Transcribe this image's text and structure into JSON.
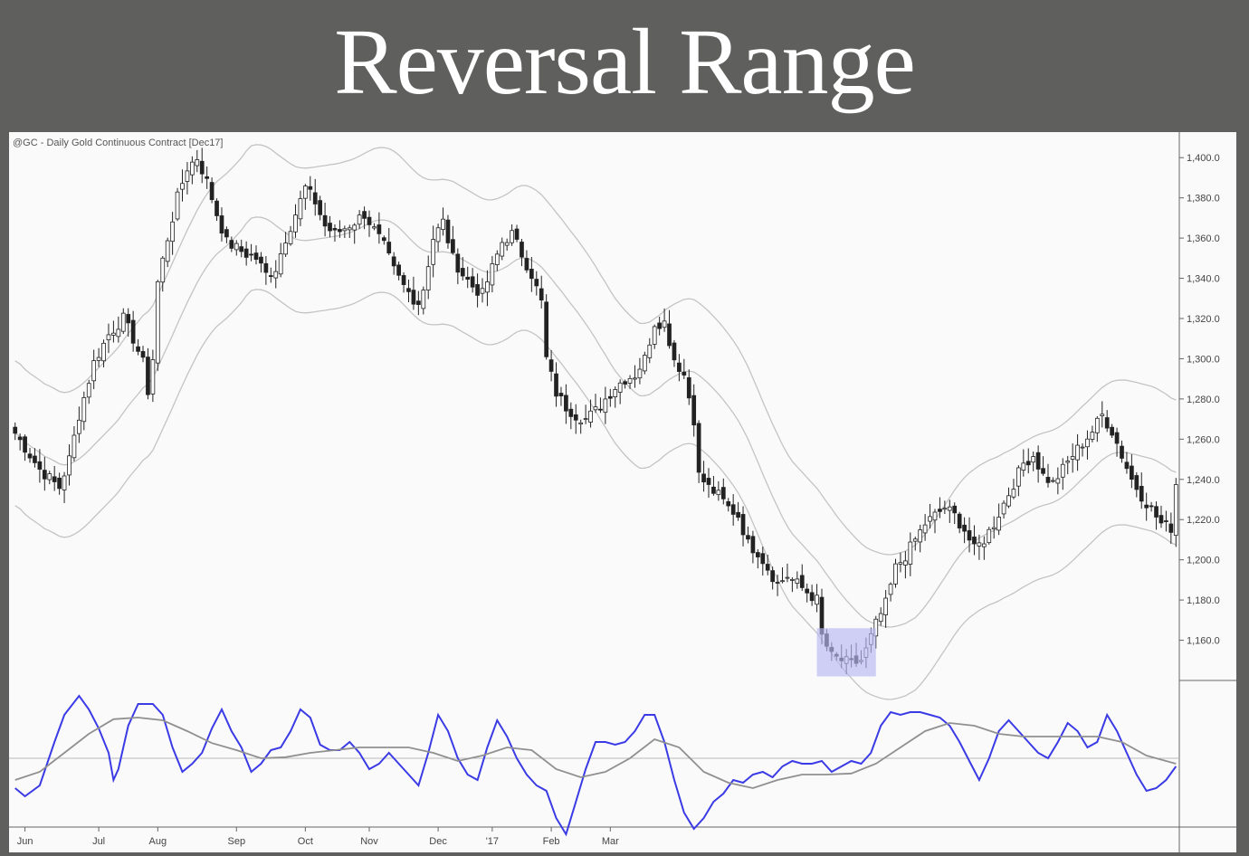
{
  "page": {
    "title": "Reversal Range"
  },
  "chart_data": {
    "type": "candlestick",
    "title": "@GC - Daily  Gold Continuous Contract [Dec17]",
    "price_axis": {
      "range": [
        1140,
        1410
      ],
      "ticks": [
        1400,
        1380,
        1360,
        1340,
        1320,
        1300,
        1280,
        1260,
        1240,
        1220,
        1200,
        1180,
        1160
      ],
      "tick_labels": [
        "1,400.0",
        "1,380.0",
        "1,360.0",
        "1,340.0",
        "1,320.0",
        "1,300.0",
        "1,280.0",
        "1,260.0",
        "1,240.0",
        "1,220.0",
        "1,200.0",
        "1,180.0",
        "1,160.0"
      ]
    },
    "x_axis": {
      "tick_labels": [
        "Jun",
        "Jul",
        "Aug",
        "Sep",
        "Oct",
        "Nov",
        "Dec",
        "'17",
        "Feb",
        "Mar"
      ]
    },
    "price_series": [
      [
        0,
        1263
      ],
      [
        5,
        1245
      ],
      [
        9,
        1236
      ],
      [
        11,
        1250
      ],
      [
        13,
        1272
      ],
      [
        16,
        1298
      ],
      [
        19,
        1312
      ],
      [
        22,
        1320
      ],
      [
        24,
        1310
      ],
      [
        26,
        1298
      ],
      [
        27,
        1284
      ],
      [
        28,
        1300
      ],
      [
        29,
        1338
      ],
      [
        31,
        1360
      ],
      [
        33,
        1380
      ],
      [
        35,
        1395
      ],
      [
        37,
        1400
      ],
      [
        39,
        1388
      ],
      [
        41,
        1372
      ],
      [
        43,
        1358
      ],
      [
        45,
        1355
      ],
      [
        47,
        1352
      ],
      [
        49,
        1350
      ],
      [
        51,
        1342
      ],
      [
        53,
        1345
      ],
      [
        55,
        1360
      ],
      [
        57,
        1372
      ],
      [
        59,
        1385
      ],
      [
        61,
        1378
      ],
      [
        63,
        1366
      ],
      [
        65,
        1362
      ],
      [
        67,
        1365
      ],
      [
        69,
        1368
      ],
      [
        71,
        1372
      ],
      [
        73,
        1364
      ],
      [
        75,
        1356
      ],
      [
        77,
        1344
      ],
      [
        79,
        1336
      ],
      [
        81,
        1330
      ],
      [
        82,
        1328
      ],
      [
        83,
        1335
      ],
      [
        85,
        1360
      ],
      [
        87,
        1368
      ],
      [
        89,
        1350
      ],
      [
        91,
        1342
      ],
      [
        93,
        1336
      ],
      [
        95,
        1332
      ],
      [
        97,
        1345
      ],
      [
        99,
        1358
      ],
      [
        101,
        1362
      ],
      [
        103,
        1352
      ],
      [
        105,
        1342
      ],
      [
        107,
        1328
      ],
      [
        108,
        1300
      ],
      [
        110,
        1283
      ],
      [
        112,
        1276
      ],
      [
        114,
        1272
      ],
      [
        116,
        1270
      ],
      [
        118,
        1274
      ],
      [
        120,
        1280
      ],
      [
        122,
        1286
      ],
      [
        124,
        1290
      ],
      [
        126,
        1292
      ],
      [
        128,
        1300
      ],
      [
        130,
        1318
      ],
      [
        132,
        1318
      ],
      [
        134,
        1300
      ],
      [
        136,
        1292
      ],
      [
        138,
        1270
      ],
      [
        139,
        1242
      ],
      [
        141,
        1236
      ],
      [
        143,
        1232
      ],
      [
        145,
        1226
      ],
      [
        147,
        1222
      ],
      [
        149,
        1208
      ],
      [
        151,
        1204
      ],
      [
        153,
        1196
      ],
      [
        155,
        1188
      ],
      [
        157,
        1192
      ],
      [
        159,
        1188
      ],
      [
        161,
        1184
      ],
      [
        163,
        1180
      ],
      [
        164,
        1162
      ],
      [
        166,
        1152
      ],
      [
        168,
        1150
      ],
      [
        170,
        1148
      ],
      [
        172,
        1150
      ],
      [
        173,
        1155
      ],
      [
        175,
        1168
      ],
      [
        177,
        1178
      ],
      [
        179,
        1196
      ],
      [
        181,
        1202
      ],
      [
        183,
        1210
      ],
      [
        185,
        1218
      ],
      [
        187,
        1222
      ],
      [
        189,
        1226
      ],
      [
        191,
        1222
      ],
      [
        193,
        1215
      ],
      [
        195,
        1205
      ],
      [
        197,
        1210
      ],
      [
        199,
        1218
      ],
      [
        201,
        1228
      ],
      [
        203,
        1238
      ],
      [
        205,
        1248
      ],
      [
        207,
        1252
      ],
      [
        209,
        1242
      ],
      [
        211,
        1238
      ],
      [
        213,
        1245
      ],
      [
        215,
        1252
      ],
      [
        217,
        1258
      ],
      [
        219,
        1264
      ],
      [
        221,
        1272
      ],
      [
        223,
        1264
      ],
      [
        225,
        1252
      ],
      [
        227,
        1240
      ],
      [
        229,
        1232
      ],
      [
        231,
        1225
      ],
      [
        233,
        1218
      ],
      [
        235,
        1216
      ],
      [
        236,
        1238
      ]
    ],
    "highlight": {
      "label": "Reversal Range",
      "x_range": [
        163.5,
        175.5
      ],
      "y_range": [
        1142,
        1166
      ]
    },
    "oscillator": {
      "levels": [
        0
      ],
      "series": [
        {
          "color": "#3b3be6",
          "values": [
            [
              0,
              -0.55
            ],
            [
              2,
              -0.7
            ],
            [
              5,
              -0.5
            ],
            [
              8,
              0.3
            ],
            [
              10,
              0.8
            ],
            [
              13,
              1.15
            ],
            [
              15,
              0.9
            ],
            [
              17,
              0.55
            ],
            [
              19,
              0.1
            ],
            [
              20,
              -0.4
            ],
            [
              21,
              -0.2
            ],
            [
              23,
              0.6
            ],
            [
              25,
              1.0
            ],
            [
              28,
              1.0
            ],
            [
              30,
              0.8
            ],
            [
              32,
              0.2
            ],
            [
              34,
              -0.25
            ],
            [
              36,
              -0.1
            ],
            [
              38,
              0.1
            ],
            [
              40,
              0.55
            ],
            [
              42,
              0.9
            ],
            [
              44,
              0.5
            ],
            [
              46,
              0.2
            ],
            [
              48,
              -0.25
            ],
            [
              50,
              -0.1
            ],
            [
              52,
              0.15
            ],
            [
              54,
              0.2
            ],
            [
              56,
              0.5
            ],
            [
              58,
              0.9
            ],
            [
              60,
              0.75
            ],
            [
              62,
              0.25
            ],
            [
              64,
              0.15
            ],
            [
              66,
              0.15
            ],
            [
              68,
              0.3
            ],
            [
              70,
              0.1
            ],
            [
              72,
              -0.2
            ],
            [
              74,
              -0.1
            ],
            [
              76,
              0.1
            ],
            [
              78,
              -0.1
            ],
            [
              80,
              -0.3
            ],
            [
              82,
              -0.5
            ],
            [
              84,
              0.1
            ],
            [
              86,
              0.8
            ],
            [
              88,
              0.5
            ],
            [
              90,
              0.0
            ],
            [
              92,
              -0.3
            ],
            [
              94,
              -0.4
            ],
            [
              96,
              0.2
            ],
            [
              98,
              0.7
            ],
            [
              100,
              0.4
            ],
            [
              102,
              0.0
            ],
            [
              104,
              -0.3
            ],
            [
              106,
              -0.5
            ],
            [
              108,
              -0.6
            ],
            [
              110,
              -1.1
            ],
            [
              112,
              -1.4
            ],
            [
              114,
              -0.8
            ],
            [
              116,
              -0.2
            ],
            [
              118,
              0.3
            ],
            [
              120,
              0.3
            ],
            [
              122,
              0.25
            ],
            [
              124,
              0.3
            ],
            [
              126,
              0.5
            ],
            [
              128,
              0.8
            ],
            [
              130,
              0.8
            ],
            [
              132,
              0.3
            ],
            [
              134,
              -0.4
            ],
            [
              136,
              -1.0
            ],
            [
              138,
              -1.3
            ],
            [
              140,
              -1.1
            ],
            [
              142,
              -0.8
            ],
            [
              144,
              -0.65
            ],
            [
              146,
              -0.4
            ],
            [
              148,
              -0.45
            ],
            [
              150,
              -0.3
            ],
            [
              152,
              -0.25
            ],
            [
              154,
              -0.35
            ],
            [
              156,
              -0.15
            ],
            [
              158,
              -0.05
            ],
            [
              160,
              -0.1
            ],
            [
              162,
              -0.1
            ],
            [
              164,
              -0.05
            ],
            [
              166,
              -0.25
            ],
            [
              168,
              -0.15
            ],
            [
              170,
              -0.05
            ],
            [
              172,
              -0.1
            ],
            [
              174,
              0.1
            ],
            [
              176,
              0.6
            ],
            [
              178,
              0.85
            ],
            [
              180,
              0.8
            ],
            [
              182,
              0.85
            ],
            [
              184,
              0.85
            ],
            [
              186,
              0.8
            ],
            [
              188,
              0.75
            ],
            [
              190,
              0.6
            ],
            [
              192,
              0.3
            ],
            [
              194,
              -0.05
            ],
            [
              196,
              -0.4
            ],
            [
              198,
              0.0
            ],
            [
              200,
              0.5
            ],
            [
              202,
              0.7
            ],
            [
              204,
              0.5
            ],
            [
              206,
              0.3
            ],
            [
              208,
              0.1
            ],
            [
              210,
              0.0
            ],
            [
              212,
              0.3
            ],
            [
              214,
              0.65
            ],
            [
              216,
              0.5
            ],
            [
              218,
              0.2
            ],
            [
              220,
              0.3
            ],
            [
              222,
              0.8
            ],
            [
              224,
              0.5
            ],
            [
              226,
              0.1
            ],
            [
              228,
              -0.3
            ],
            [
              230,
              -0.6
            ],
            [
              232,
              -0.55
            ],
            [
              234,
              -0.4
            ],
            [
              236,
              -0.15
            ]
          ]
        },
        {
          "color": "#909090",
          "values": [
            [
              0,
              -0.4
            ],
            [
              5,
              -0.25
            ],
            [
              10,
              0.1
            ],
            [
              15,
              0.45
            ],
            [
              20,
              0.72
            ],
            [
              25,
              0.75
            ],
            [
              30,
              0.7
            ],
            [
              35,
              0.5
            ],
            [
              40,
              0.28
            ],
            [
              45,
              0.15
            ],
            [
              50,
              0.0
            ],
            [
              55,
              0.02
            ],
            [
              60,
              0.1
            ],
            [
              65,
              0.15
            ],
            [
              70,
              0.2
            ],
            [
              75,
              0.2
            ],
            [
              80,
              0.2
            ],
            [
              85,
              0.1
            ],
            [
              90,
              -0.05
            ],
            [
              95,
              0.05
            ],
            [
              100,
              0.2
            ],
            [
              105,
              0.15
            ],
            [
              110,
              -0.2
            ],
            [
              115,
              -0.35
            ],
            [
              120,
              -0.25
            ],
            [
              125,
              0.0
            ],
            [
              130,
              0.35
            ],
            [
              135,
              0.2
            ],
            [
              140,
              -0.25
            ],
            [
              145,
              -0.45
            ],
            [
              150,
              -0.55
            ],
            [
              155,
              -0.4
            ],
            [
              160,
              -0.3
            ],
            [
              165,
              -0.3
            ],
            [
              170,
              -0.28
            ],
            [
              175,
              -0.1
            ],
            [
              180,
              0.2
            ],
            [
              185,
              0.5
            ],
            [
              190,
              0.65
            ],
            [
              195,
              0.6
            ],
            [
              200,
              0.45
            ],
            [
              205,
              0.4
            ],
            [
              210,
              0.4
            ],
            [
              215,
              0.4
            ],
            [
              220,
              0.4
            ],
            [
              225,
              0.3
            ],
            [
              230,
              0.05
            ],
            [
              236,
              -0.1
            ]
          ]
        }
      ]
    }
  }
}
